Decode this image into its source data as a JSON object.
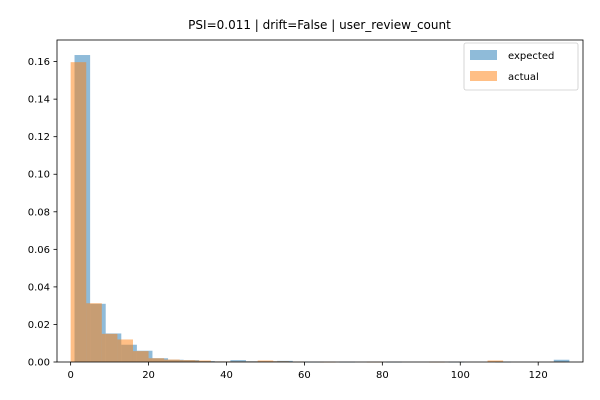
{
  "chart_data": {
    "type": "bar",
    "title": "PSI=0.011 | drift=False | user_review_count",
    "xlabel": "",
    "ylabel": "",
    "xlim": [
      -3.5,
      131.5
    ],
    "ylim": [
      0,
      0.1715
    ],
    "xticks": [
      0,
      20,
      40,
      60,
      80,
      100,
      120
    ],
    "yticks": [
      0.0,
      0.02,
      0.04,
      0.06,
      0.08,
      0.1,
      0.12,
      0.14,
      0.16
    ],
    "ytick_labels": [
      "0.00",
      "0.02",
      "0.04",
      "0.06",
      "0.08",
      "0.10",
      "0.12",
      "0.14",
      "0.16"
    ],
    "grid": false,
    "legend_position": "top-right",
    "series": [
      {
        "name": "expected",
        "color": "#1f77b4",
        "opacity": 0.5,
        "bins": [
          [
            1,
            5,
            0.1635
          ],
          [
            5,
            9,
            0.031
          ],
          [
            9,
            13,
            0.0152
          ],
          [
            13,
            17,
            0.0092
          ],
          [
            17,
            21,
            0.006
          ],
          [
            21,
            25,
            0.002
          ],
          [
            25,
            29,
            0.0012
          ],
          [
            29,
            33,
            0.001
          ],
          [
            33,
            37,
            0.0005
          ],
          [
            37,
            41,
            0.0003
          ],
          [
            41,
            45,
            0.001
          ],
          [
            45,
            49,
            0.0004
          ],
          [
            49,
            53,
            0.0004
          ],
          [
            53,
            57,
            0.0006
          ],
          [
            57,
            61,
            0.0002
          ],
          [
            61,
            65,
            0.0001
          ],
          [
            69,
            73,
            0.0001
          ],
          [
            81,
            85,
            0.0001
          ],
          [
            97,
            101,
            0.0001
          ],
          [
            109,
            113,
            0.0001
          ],
          [
            124,
            128,
            0.0012
          ]
        ]
      },
      {
        "name": "actual",
        "color": "#ff7f0e",
        "opacity": 0.5,
        "bins": [
          [
            0,
            4,
            0.1597
          ],
          [
            4,
            8,
            0.0313
          ],
          [
            8,
            12,
            0.015
          ],
          [
            12,
            16,
            0.012
          ],
          [
            16,
            20,
            0.0058
          ],
          [
            20,
            24,
            0.002
          ],
          [
            24,
            28,
            0.0013
          ],
          [
            28,
            32,
            0.001
          ],
          [
            32,
            36,
            0.0008
          ],
          [
            36,
            40,
            0.0003
          ],
          [
            40,
            44,
            0.0003
          ],
          [
            44,
            48,
            0.0003
          ],
          [
            48,
            52,
            0.0008
          ],
          [
            52,
            56,
            0.0004
          ],
          [
            56,
            60,
            0.0002
          ],
          [
            64,
            68,
            0.0001
          ],
          [
            76,
            80,
            0.0001
          ],
          [
            92,
            96,
            0.0001
          ],
          [
            107,
            111,
            0.0008
          ],
          [
            123,
            127,
            0.0002
          ]
        ]
      }
    ]
  }
}
